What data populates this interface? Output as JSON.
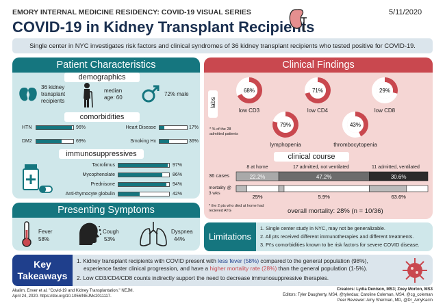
{
  "header": {
    "series": "EMORY INTERNAL MEDICINE RESIDENCY: COVID-19 VISUAL SERIES",
    "date": "5/11/2020",
    "title": "COVID-19 in Kidney Transplant Recipients"
  },
  "summary": "Single center in NYC investigates risk factors and clinical syndromes of 36 kidney transplant recipients who tested positive for COVID-19.",
  "patient": {
    "heading": "Patient Characteristics",
    "demographics": {
      "heading": "demographics",
      "count": "36 kidney transplant recipients",
      "age": "median age: 60",
      "male": "72% male"
    },
    "comorbidities": {
      "heading": "comorbidities",
      "items": [
        {
          "label": "HTN",
          "value": 96,
          "text": "96%"
        },
        {
          "label": "DM2",
          "value": 69,
          "text": "69%"
        },
        {
          "label": "Heart Disease",
          "value": 17,
          "text": "17%"
        },
        {
          "label": "Smoking Hx",
          "value": 36,
          "text": "36%"
        }
      ]
    },
    "immuno": {
      "heading": "immunosuppressives",
      "items": [
        {
          "label": "Tacrolimus",
          "value": 97,
          "text": "97%"
        },
        {
          "label": "Mycophenolate",
          "value": 86,
          "text": "86%"
        },
        {
          "label": "Prednisone",
          "value": 94,
          "text": "94%"
        },
        {
          "label": "Anti-thymocyte globulin",
          "value": 42,
          "text": "42%"
        }
      ]
    }
  },
  "symptoms": {
    "heading": "Presenting Symptoms",
    "items": [
      {
        "name": "Fever",
        "pct": "58%"
      },
      {
        "name": "Cough",
        "pct": "53%"
      },
      {
        "name": "Dyspnea",
        "pct": "44%"
      }
    ]
  },
  "clinical": {
    "heading": "Clinical Findings",
    "labs_label": "labs",
    "labs_note": "* % of the 28 admitted patients",
    "labs": [
      {
        "name": "low CD3",
        "value": 68,
        "text": "68%"
      },
      {
        "name": "low CD4",
        "value": 71,
        "text": "71%"
      },
      {
        "name": "low CD8",
        "value": 29,
        "text": "29%"
      },
      {
        "name": "lymphopenia",
        "value": 79,
        "text": "79%"
      },
      {
        "name": "thrombocytopenia",
        "value": 43,
        "text": "43%"
      }
    ],
    "course": {
      "heading": "clinical course",
      "cases_label": "36 cases",
      "mortality_label": "mortality @ 3 wks",
      "groups": [
        {
          "name": "8 at home",
          "value": 22.2,
          "text": "22.2%",
          "mortality": "25%"
        },
        {
          "name": "17 admitted, not ventilated",
          "value": 47.2,
          "text": "47.2%",
          "mortality": "5.9%"
        },
        {
          "name": "11 admitted, ventilated",
          "value": 30.6,
          "text": "30.6%",
          "mortality": "63.6%"
        }
      ],
      "footnote": "* the 2 pts who died at home had recieved ATG",
      "overall": "overall mortality: 28% (n = 10/36)"
    }
  },
  "limitations": {
    "heading": "Limitations",
    "items": [
      "1. Single center study in NYC, may not be generalizable.",
      "2. All pts received different immunotherapies and different treatments.",
      "3. Pt's comorbidities known to be risk factors for severe COVID disease."
    ]
  },
  "takeaways": {
    "heading": "Key Takeaways",
    "line1a": "1. Kidney transplant recipients with COVID present with ",
    "line1b": "less fever (58%)",
    "line1c": " compared to the general population (98%),",
    "line2a": "experience faster clinical progression, and have a ",
    "line2b": "higher mortality rate (28%)",
    "line2c": " than the general population (1-5%).",
    "line3": "2. Low CD3/CD4/CD8 counts indirectly support the need to decrease immunosuppressive therapies."
  },
  "footer": {
    "citation1": "Akalim, Enver et al. \"Covid-19 and Kidney Transplantation.\" NEJM.",
    "citation2": "April 24, 2020. https://doi.org/10.1056/NEJMc2011117.",
    "creators": "Creators: Lydia Denison, MS3; Zoey Morton, MS3",
    "editors": "Editors: Tyler Daugherty, MS4, @tylerdau; Caroline Coleman, MS4, @cg_coleman",
    "reviewer": "Peer Reviewer: Amy Sherman, MD, @Dr_AmyKacin"
  },
  "colors": {
    "teal": "#15767f",
    "teal_light": "#cfe7ea",
    "red": "#c9484f",
    "red_light": "#f5d6d4",
    "navy": "#1f3f8c"
  }
}
